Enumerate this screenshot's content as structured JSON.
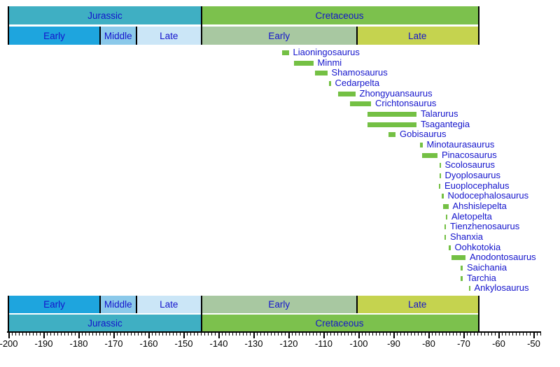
{
  "chart_data": {
    "type": "bar",
    "subtype": "temporal-range-timeline",
    "title": "",
    "x_unit": "Ma",
    "x_range": [
      -200,
      -48
    ],
    "grid": false,
    "legend": "none",
    "colors": {
      "jurassic": "#3fafc3",
      "cretaceous": "#7cc14d",
      "jurassic_early": "#1ea5de",
      "jurassic_middle": "#8bc9ea",
      "jurassic_late": "#cbe6f7",
      "cretaceous_early": "#a8c8a1",
      "cretaceous_late": "#c5d34f",
      "taxon_bar": "#74c044",
      "label_text": "#1414cc",
      "axis_text": "#000000"
    },
    "periods": [
      {
        "label": "Jurassic",
        "start": -200,
        "end": -145,
        "color": "jurassic"
      },
      {
        "label": "Cretaceous",
        "start": -145,
        "end": -66,
        "color": "cretaceous"
      }
    ],
    "epochs": [
      {
        "label": "Early",
        "start": -200,
        "end": -174,
        "color": "jurassic_early"
      },
      {
        "label": "Middle",
        "start": -174,
        "end": -163.5,
        "color": "jurassic_middle"
      },
      {
        "label": "Late",
        "start": -163.5,
        "end": -145,
        "color": "jurassic_late"
      },
      {
        "label": "Early",
        "start": -145,
        "end": -100.5,
        "color": "cretaceous_early"
      },
      {
        "label": "Late",
        "start": -100.5,
        "end": -66,
        "color": "cretaceous_late"
      }
    ],
    "boundaries": [
      {
        "t": -200,
        "span": "full"
      },
      {
        "t": -174,
        "span": "epoch"
      },
      {
        "t": -163.5,
        "span": "epoch"
      },
      {
        "t": -145,
        "span": "full"
      },
      {
        "t": -100.5,
        "span": "epoch"
      },
      {
        "t": -66,
        "span": "full"
      }
    ],
    "taxa": [
      {
        "name": "Liaoningosaurus",
        "start": -122,
        "end": -120
      },
      {
        "name": "Minmi",
        "start": -118.5,
        "end": -113
      },
      {
        "name": "Shamosaurus",
        "start": -112.5,
        "end": -109
      },
      {
        "name": "Cedarpelta",
        "start": -108.5,
        "end": -108
      },
      {
        "name": "Zhongyuansaurus",
        "start": -106,
        "end": -101
      },
      {
        "name": "Crichtonsaurus",
        "start": -102.5,
        "end": -96.5
      },
      {
        "name": "Talarurus",
        "start": -97.5,
        "end": -83.5
      },
      {
        "name": "Tsagantegia",
        "start": -97.5,
        "end": -83.5
      },
      {
        "name": "Gobisaurus",
        "start": -91.5,
        "end": -89.5
      },
      {
        "name": "Minotaurasaurus",
        "start": -82.5,
        "end": -81.8
      },
      {
        "name": "Pinacosaurus",
        "start": -82,
        "end": -77.5
      },
      {
        "name": "Scolosaurus",
        "start": -77,
        "end": -76.6
      },
      {
        "name": "Dyoplosaurus",
        "start": -77,
        "end": -76.6
      },
      {
        "name": "Euoplocephalus",
        "start": -77.2,
        "end": -76.7
      },
      {
        "name": "Nodocephalosaurus",
        "start": -76.3,
        "end": -75.8
      },
      {
        "name": "Ahshislepelta",
        "start": -76,
        "end": -74.4
      },
      {
        "name": "Aletopelta",
        "start": -75.2,
        "end": -74.7
      },
      {
        "name": "Tienzhenosaurus",
        "start": -75.6,
        "end": -75.1
      },
      {
        "name": "Shanxia",
        "start": -75.6,
        "end": -75.1
      },
      {
        "name": "Oohkotokia",
        "start": -74.4,
        "end": -73.8
      },
      {
        "name": "Anodontosaurus",
        "start": -73.5,
        "end": -69.5
      },
      {
        "name": "Saichania",
        "start": -71,
        "end": -70.3
      },
      {
        "name": "Tarchia",
        "start": -71,
        "end": -70.3
      },
      {
        "name": "Ankylosaurus",
        "start": -68.6,
        "end": -68.2
      }
    ],
    "axis": {
      "tick_start": -200,
      "tick_end": -48,
      "minor_interval": 1,
      "major_interval": 10,
      "major_tick_labels": [
        "-200",
        "-190",
        "-180",
        "-170",
        "-160",
        "-150",
        "-140",
        "-130",
        "-120",
        "-110",
        "-100",
        "-90",
        "-80",
        "-70",
        "-60",
        "-50"
      ]
    }
  }
}
